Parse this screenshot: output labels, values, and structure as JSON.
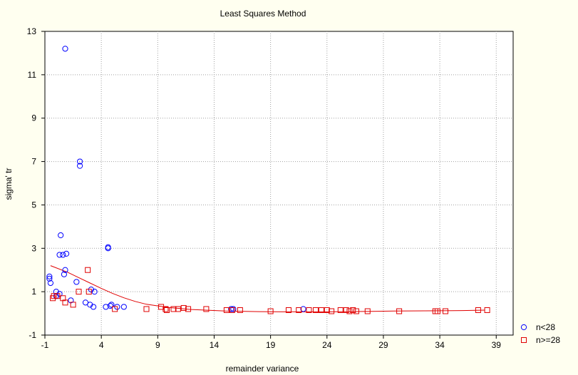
{
  "chart_data": {
    "type": "scatter",
    "title": "Least Squares Method",
    "xlabel": "remainder variance",
    "ylabel": "sigma' tr",
    "xlim": [
      -1,
      40.5
    ],
    "ylim": [
      -1,
      13
    ],
    "xticks": [
      -1,
      4,
      9,
      14,
      19,
      24,
      29,
      34,
      39
    ],
    "yticks": [
      -1,
      1,
      3,
      5,
      7,
      9,
      11,
      13
    ],
    "grid": true,
    "legend": "right",
    "fit_line": {
      "color": "#e00000",
      "x": [
        -0.5,
        1,
        2,
        3,
        4,
        5,
        6,
        7,
        8,
        10,
        12,
        15,
        18,
        20,
        24,
        28,
        30,
        34,
        36,
        38
      ],
      "y": [
        2.2,
        1.9,
        1.65,
        1.4,
        1.15,
        0.92,
        0.72,
        0.55,
        0.42,
        0.27,
        0.18,
        0.11,
        0.08,
        0.07,
        0.07,
        0.09,
        0.11,
        0.12,
        0.13,
        0.15
      ]
    },
    "series": [
      {
        "name": "n<28",
        "marker": "circle",
        "color": "#0000ff",
        "points": [
          [
            0.8,
            12.2
          ],
          [
            2.1,
            7.0
          ],
          [
            2.1,
            6.8
          ],
          [
            0.4,
            3.6
          ],
          [
            0.3,
            2.7
          ],
          [
            0.6,
            2.7
          ],
          [
            0.9,
            2.75
          ],
          [
            4.6,
            3.05
          ],
          [
            4.6,
            3.0
          ],
          [
            0.8,
            2.0
          ],
          [
            0.7,
            1.8
          ],
          [
            -0.6,
            1.7
          ],
          [
            -0.6,
            1.6
          ],
          [
            1.8,
            1.45
          ],
          [
            -0.5,
            1.4
          ],
          [
            3.1,
            1.1
          ],
          [
            3.4,
            1.0
          ],
          [
            0.0,
            1.0
          ],
          [
            0.3,
            0.9
          ],
          [
            0.0,
            0.8
          ],
          [
            1.3,
            0.6
          ],
          [
            2.6,
            0.5
          ],
          [
            3.0,
            0.4
          ],
          [
            3.3,
            0.3
          ],
          [
            4.4,
            0.3
          ],
          [
            4.8,
            0.35
          ],
          [
            4.9,
            0.4
          ],
          [
            5.4,
            0.3
          ],
          [
            6.0,
            0.3
          ],
          [
            15.5,
            0.2
          ],
          [
            15.7,
            0.2
          ],
          [
            21.9,
            0.2
          ]
        ]
      },
      {
        "name": "n>=28",
        "marker": "square",
        "color": "#e00000",
        "points": [
          [
            2.8,
            2.0
          ],
          [
            -0.3,
            0.7
          ],
          [
            -0.2,
            0.8
          ],
          [
            0.1,
            0.8
          ],
          [
            0.6,
            0.7
          ],
          [
            2.0,
            1.0
          ],
          [
            2.9,
            1.0
          ],
          [
            0.8,
            0.5
          ],
          [
            1.5,
            0.4
          ],
          [
            5.2,
            0.2
          ],
          [
            8.0,
            0.2
          ],
          [
            9.3,
            0.3
          ],
          [
            9.7,
            0.2
          ],
          [
            9.8,
            0.15
          ],
          [
            10.4,
            0.2
          ],
          [
            10.8,
            0.2
          ],
          [
            11.3,
            0.25
          ],
          [
            11.7,
            0.2
          ],
          [
            13.3,
            0.2
          ],
          [
            15.1,
            0.15
          ],
          [
            15.6,
            0.15
          ],
          [
            16.3,
            0.15
          ],
          [
            19.0,
            0.1
          ],
          [
            20.6,
            0.15
          ],
          [
            21.5,
            0.15
          ],
          [
            22.4,
            0.15
          ],
          [
            23.0,
            0.15
          ],
          [
            23.5,
            0.15
          ],
          [
            24.0,
            0.15
          ],
          [
            24.4,
            0.1
          ],
          [
            25.2,
            0.15
          ],
          [
            25.7,
            0.15
          ],
          [
            26.0,
            0.1
          ],
          [
            26.3,
            0.15
          ],
          [
            26.6,
            0.1
          ],
          [
            27.6,
            0.1
          ],
          [
            30.4,
            0.1
          ],
          [
            33.6,
            0.1
          ],
          [
            33.8,
            0.1
          ],
          [
            34.5,
            0.1
          ],
          [
            37.4,
            0.15
          ],
          [
            38.2,
            0.15
          ]
        ]
      }
    ]
  }
}
